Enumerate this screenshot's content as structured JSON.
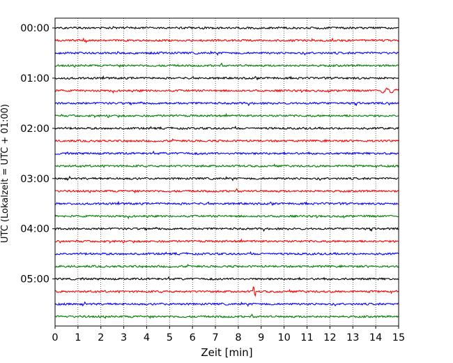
{
  "chart_data": {
    "type": "line",
    "title": "",
    "xlabel": "Zeit  [min]",
    "ylabel": "UTC (Lokalzeit = UTC + 01:00)",
    "xlim": [
      0,
      15
    ],
    "x_ticks": [
      "0",
      "1",
      "2",
      "3",
      "4",
      "5",
      "6",
      "7",
      "8",
      "9",
      "10",
      "11",
      "12",
      "13",
      "14",
      "15"
    ],
    "grid": "vertical dotted",
    "legend": "none",
    "y_tick_labels": [
      "00:00",
      "01:00",
      "02:00",
      "03:00",
      "04:00",
      "05:00"
    ],
    "y_tick_rows": [
      0,
      4,
      8,
      12,
      16,
      20
    ],
    "row_interval_minutes": 15,
    "row_color_cycle": [
      "#000000",
      "#ff0000",
      "#0000ff",
      "#008000"
    ],
    "rows": [
      {
        "start": "00:00",
        "color": "#000000"
      },
      {
        "start": "00:15",
        "color": "#ff0000"
      },
      {
        "start": "00:30",
        "color": "#0000ff"
      },
      {
        "start": "00:45",
        "color": "#008000"
      },
      {
        "start": "01:00",
        "color": "#000000"
      },
      {
        "start": "01:15",
        "color": "#ff0000"
      },
      {
        "start": "01:30",
        "color": "#0000ff"
      },
      {
        "start": "01:45",
        "color": "#008000"
      },
      {
        "start": "02:00",
        "color": "#000000"
      },
      {
        "start": "02:15",
        "color": "#ff0000"
      },
      {
        "start": "02:30",
        "color": "#0000ff"
      },
      {
        "start": "02:45",
        "color": "#008000"
      },
      {
        "start": "03:00",
        "color": "#000000"
      },
      {
        "start": "03:15",
        "color": "#ff0000"
      },
      {
        "start": "03:30",
        "color": "#0000ff"
      },
      {
        "start": "03:45",
        "color": "#008000"
      },
      {
        "start": "04:00",
        "color": "#000000"
      },
      {
        "start": "04:15",
        "color": "#ff0000"
      },
      {
        "start": "04:30",
        "color": "#0000ff"
      },
      {
        "start": "04:45",
        "color": "#008000"
      },
      {
        "start": "05:00",
        "color": "#000000"
      },
      {
        "start": "05:15",
        "color": "#ff0000"
      },
      {
        "start": "05:30",
        "color": "#0000ff"
      },
      {
        "start": "05:45",
        "color": "#008000"
      }
    ],
    "events": [
      {
        "row_start": "01:15",
        "minute": 14.2,
        "description": "wavy oscillation"
      },
      {
        "row_start": "05:15",
        "minute": 8.7,
        "description": "spike"
      }
    ]
  }
}
